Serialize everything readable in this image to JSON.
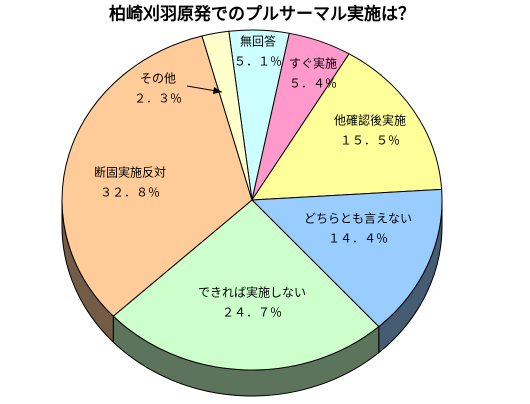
{
  "chart_data": {
    "type": "pie3d",
    "title": "柏崎刈羽原発でのプルサーマル実施は？",
    "categories": [
      "無回答",
      "すぐ実施",
      "他確認後実施",
      "どちらとも言えない",
      "できれば実施しない",
      "断固実施反対",
      "その他"
    ],
    "values": [
      5.1,
      5.4,
      15.5,
      14.4,
      24.7,
      32.8,
      2.3
    ],
    "value_labels": [
      "５．１％",
      "５．４％",
      "１５．５％",
      "１４．４％",
      "２４．７％",
      "３２．８％",
      "２．３％"
    ],
    "colors": [
      "#ccffff",
      "#ff99cc",
      "#ffff99",
      "#99ccff",
      "#ccffcc",
      "#ffcc99",
      "#ffffcc"
    ]
  }
}
